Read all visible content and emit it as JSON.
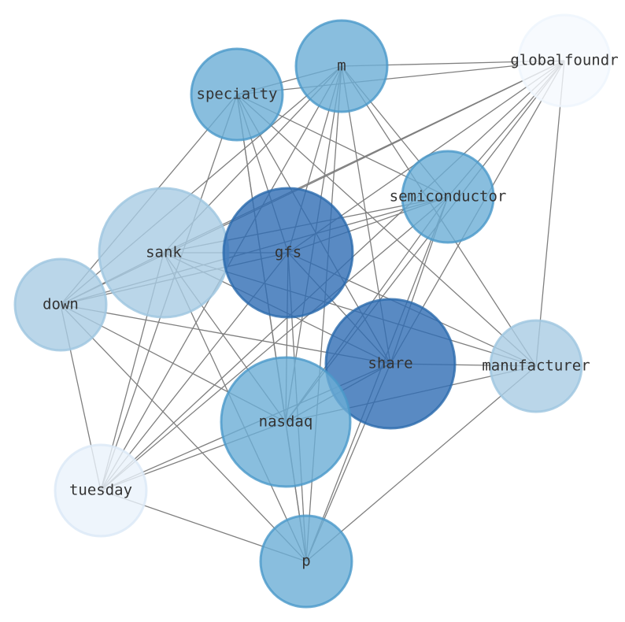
{
  "nodes": [
    {
      "label": "m"
    },
    {
      "label": "globalfoundr"
    },
    {
      "label": "specialty"
    },
    {
      "label": "semiconductor"
    },
    {
      "label": "sank"
    },
    {
      "label": "gfs"
    },
    {
      "label": "down"
    },
    {
      "label": "share"
    },
    {
      "label": "manufacturer"
    },
    {
      "label": "nasdaq"
    },
    {
      "label": "tuesday"
    },
    {
      "label": "p"
    }
  ]
}
